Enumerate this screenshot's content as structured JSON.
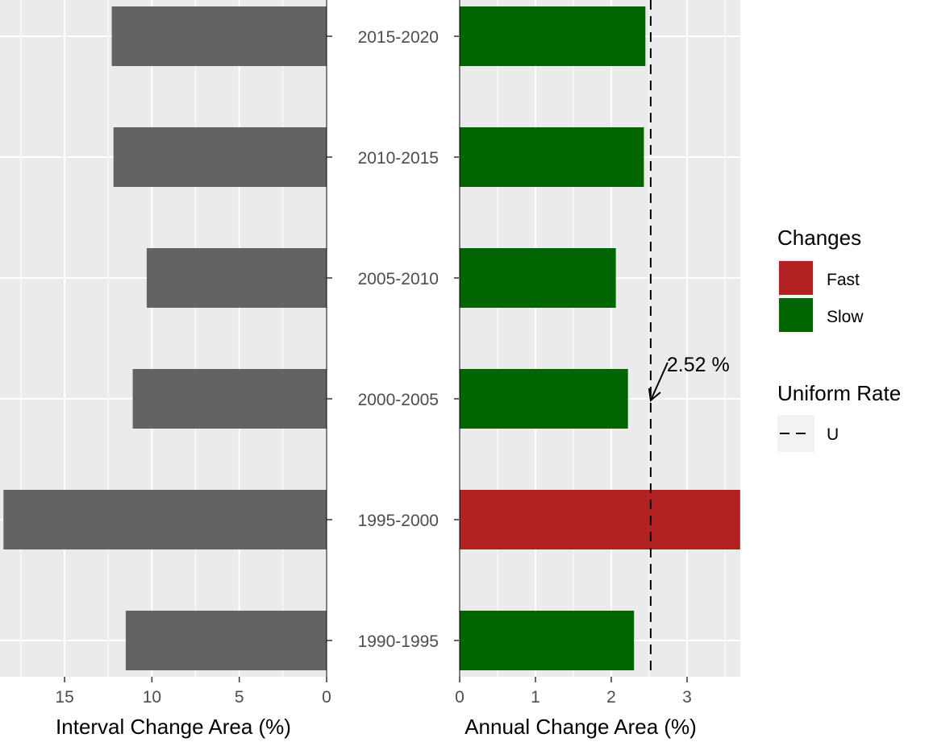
{
  "chart_data": [
    {
      "type": "bar",
      "orientation": "horizontal",
      "direction": "reversed",
      "xlabel": "Interval Change Area (%)",
      "xlim": [
        18.6,
        0
      ],
      "xticks": [
        15,
        10,
        5,
        0
      ],
      "categories": [
        "1990-1995",
        "1995-2000",
        "2000-2005",
        "2005-2010",
        "2010-2015",
        "2015-2020"
      ],
      "values": [
        11.5,
        18.5,
        11.1,
        10.3,
        12.2,
        12.3
      ],
      "bar_color": "#636363",
      "panel_background": "#ebebeb",
      "grid": true
    },
    {
      "type": "bar",
      "orientation": "horizontal",
      "xlabel": "Annual Change Area (%)",
      "xlim": [
        0,
        3.7
      ],
      "xticks": [
        0,
        1,
        2,
        3
      ],
      "categories": [
        "1990-1995",
        "1995-2000",
        "2000-2005",
        "2005-2010",
        "2010-2015",
        "2015-2020"
      ],
      "values": [
        2.3,
        3.7,
        2.22,
        2.06,
        2.43,
        2.45
      ],
      "changes": [
        "Slow",
        "Fast",
        "Slow",
        "Slow",
        "Slow",
        "Slow"
      ],
      "uniform_rate": 2.52,
      "annotation": "2.52 %",
      "panel_background": "#ebebeb",
      "grid": true
    }
  ],
  "legend": {
    "placement": "right",
    "changes": {
      "title": "Changes",
      "items": [
        {
          "label": "Fast",
          "color": "#b22222"
        },
        {
          "label": "Slow",
          "color": "#006400"
        }
      ]
    },
    "uniform_rate": {
      "title": "Uniform Rate",
      "items": [
        {
          "label": "U",
          "line": "dashed"
        }
      ]
    }
  }
}
